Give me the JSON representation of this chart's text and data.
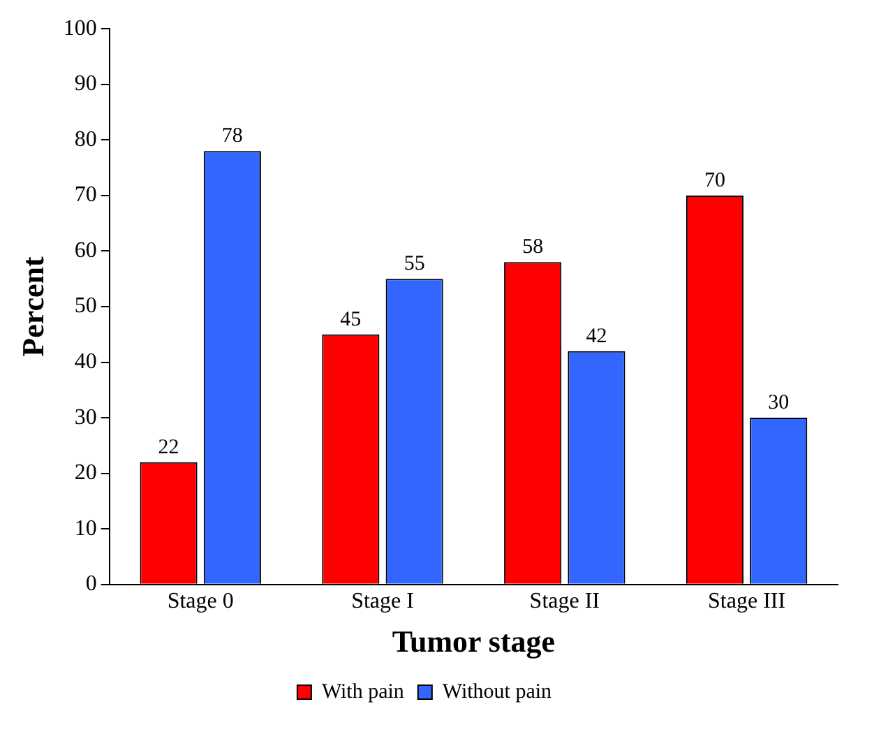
{
  "chart_data": {
    "type": "bar",
    "xlabel": "Tumor stage",
    "ylabel": "Percent",
    "categories": [
      "Stage 0",
      "Stage I",
      "Stage II",
      "Stage III"
    ],
    "series": [
      {
        "name": "With pain",
        "color": "#ff0000",
        "values": [
          22,
          45,
          58,
          70
        ]
      },
      {
        "name": "Without pain",
        "color": "#3366ff",
        "values": [
          78,
          55,
          42,
          30
        ]
      }
    ],
    "ylim": [
      0,
      100
    ],
    "yticks": [
      0,
      10,
      20,
      30,
      40,
      50,
      60,
      70,
      80,
      90,
      100
    ],
    "grid": false,
    "legend": "bottom",
    "data_labels": true
  }
}
